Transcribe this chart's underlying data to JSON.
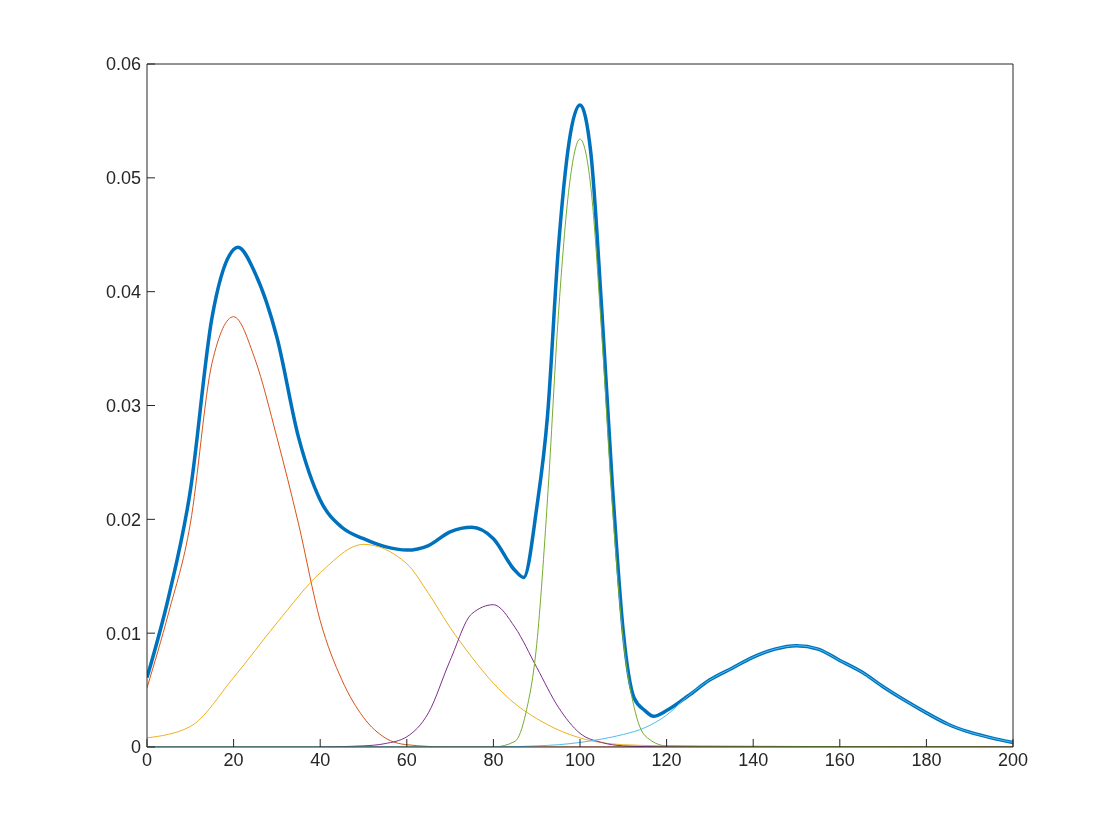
{
  "chart_data": {
    "type": "line",
    "xlim": [
      0,
      200
    ],
    "xticks": [
      0,
      20,
      40,
      60,
      80,
      100,
      120,
      140,
      160,
      180,
      200
    ],
    "ylim": [
      0,
      0.06
    ],
    "yticks": [
      0,
      0.01,
      0.02,
      0.03,
      0.04,
      0.05,
      0.06
    ],
    "series": [
      {
        "color": "#0072bd",
        "x": [
          0,
          5,
          10,
          15,
          20,
          21,
          25,
          30,
          35,
          40,
          45,
          50,
          55,
          60,
          65,
          70,
          75,
          80,
          85,
          87,
          90,
          92.5,
          95,
          97.5,
          100,
          102.5,
          105,
          107.5,
          110,
          112.5,
          115,
          117,
          120,
          125,
          130,
          135,
          140,
          145,
          150,
          155,
          160,
          165,
          170,
          175,
          180,
          185,
          190,
          195,
          200
        ],
        "values": [
          0.0061,
          0.0132,
          0.0225,
          0.0377,
          0.0437,
          0.0439,
          0.0416,
          0.036,
          0.0272,
          0.0217,
          0.0193,
          0.0183,
          0.0176,
          0.0173,
          0.0177,
          0.0189,
          0.0193,
          0.0183,
          0.0155,
          0.0149,
          0.021,
          0.0291,
          0.0438,
          0.0532,
          0.0564,
          0.0522,
          0.0386,
          0.0229,
          0.0101,
          0.0043,
          0.0032,
          0.0027,
          0.0032,
          0.0045,
          0.0059,
          0.0069,
          0.0079,
          0.0086,
          0.0089,
          0.0086,
          0.0076,
          0.0066,
          0.0053,
          0.0041,
          0.003,
          0.002,
          0.0013,
          0.0008,
          0.0004
        ]
      },
      {
        "color": "#d95319",
        "x": [
          0,
          5,
          10,
          15,
          20,
          25,
          30,
          35,
          40,
          45,
          50,
          55,
          60,
          70,
          80,
          100,
          120,
          150,
          200
        ],
        "values": [
          0.0052,
          0.0118,
          0.0196,
          0.0337,
          0.0378,
          0.034,
          0.0272,
          0.0196,
          0.0111,
          0.0059,
          0.0026,
          0.0008,
          0.0002,
          0,
          0,
          0,
          0,
          0,
          0
        ]
      },
      {
        "color": "#edb120",
        "x": [
          0,
          10,
          20,
          30,
          40,
          50,
          60,
          65,
          70,
          75,
          80,
          85,
          90,
          95,
          100,
          110,
          120,
          140,
          200
        ],
        "values": [
          0.0008,
          0.0018,
          0.0061,
          0.0109,
          0.0153,
          0.0178,
          0.0161,
          0.0135,
          0.0105,
          0.0079,
          0.0056,
          0.0038,
          0.0025,
          0.0015,
          0.0008,
          0.0002,
          0.0001,
          0,
          0
        ]
      },
      {
        "color": "#7e2f8e",
        "x": [
          40,
          50,
          55,
          60,
          65,
          70,
          75,
          80,
          85,
          90,
          95,
          100,
          105,
          110,
          120,
          200
        ],
        "values": [
          0,
          0.0001,
          0.0003,
          0.0009,
          0.003,
          0.0076,
          0.0117,
          0.0125,
          0.0105,
          0.007,
          0.0035,
          0.0012,
          0.0004,
          0.0001,
          0,
          0
        ]
      },
      {
        "color": "#77ac30",
        "x": [
          0,
          80,
          85,
          87.5,
          90,
          92.5,
          95,
          97.5,
          100,
          102.5,
          105,
          107.5,
          110,
          112.5,
          115,
          120,
          200
        ],
        "values": [
          0,
          0,
          0.0005,
          0.003,
          0.009,
          0.0218,
          0.0379,
          0.0492,
          0.0534,
          0.0492,
          0.0364,
          0.021,
          0.0094,
          0.0035,
          0.001,
          0.0001,
          0
        ]
      },
      {
        "color": "#4dbeee",
        "x": [
          0,
          80,
          90,
          95,
          100,
          105,
          110,
          115,
          120,
          125,
          130,
          135,
          140,
          145,
          150,
          155,
          160,
          165,
          170,
          175,
          180,
          185,
          190,
          195,
          200
        ],
        "values": [
          0,
          0,
          0.0001,
          0.0002,
          0.0004,
          0.0007,
          0.0011,
          0.0017,
          0.0028,
          0.0045,
          0.0059,
          0.0069,
          0.0079,
          0.0086,
          0.0089,
          0.0086,
          0.0076,
          0.0066,
          0.0053,
          0.0041,
          0.003,
          0.002,
          0.0013,
          0.0008,
          0.0004
        ]
      }
    ]
  }
}
